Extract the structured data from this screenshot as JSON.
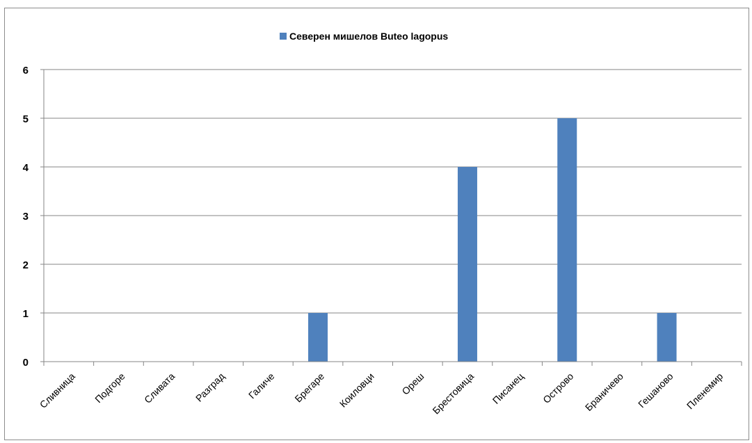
{
  "chart_data": {
    "type": "bar",
    "categories": [
      "Сливница",
      "Подгоре",
      "Сливата",
      "Разград",
      "Галиче",
      "Брегаре",
      "Коиловци",
      "Ореш",
      "Брестовица",
      "Писанец",
      "Острово",
      "Браничево",
      "Гешаново",
      "Пленемир"
    ],
    "series": [
      {
        "name": "Северен мишелов Buteo lagopus",
        "values": [
          0,
          0,
          0,
          0,
          0,
          1,
          0,
          0,
          4,
          0,
          5,
          0,
          1,
          0
        ],
        "color": "#4f81bd"
      }
    ],
    "yticks": [
      "0",
      "1",
      "2",
      "3",
      "4",
      "5",
      "6"
    ],
    "ylim": [
      0,
      6
    ],
    "grid": true,
    "legend_position": "top"
  }
}
